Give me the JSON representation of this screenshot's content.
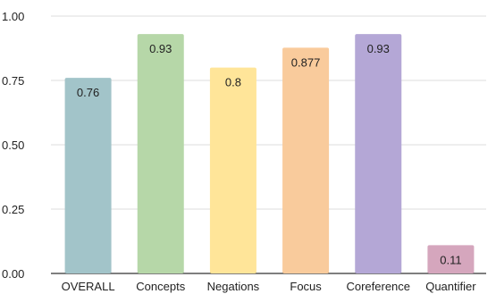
{
  "chart_data": {
    "type": "bar",
    "categories": [
      "OVERALL",
      "Concepts",
      "Negations",
      "Focus",
      "Coreference",
      "Quantifier"
    ],
    "values": [
      0.76,
      0.93,
      0.8,
      0.877,
      0.93,
      0.11
    ],
    "data_labels": [
      "0.76",
      "0.93",
      "0.8",
      "0.877",
      "0.93",
      "0.11"
    ],
    "colors": [
      "#a2c4c9",
      "#b6d7a8",
      "#ffe599",
      "#f9cb9c",
      "#b4a7d6",
      "#d5a6bd"
    ],
    "yticks": [
      0,
      0.25,
      0.5,
      0.75,
      1.0
    ],
    "ytick_labels": [
      "0.00",
      "0.25",
      "0.50",
      "0.75",
      "1.00"
    ],
    "ylim": [
      0,
      1.0
    ],
    "grid": true,
    "title": "",
    "xlabel": "",
    "ylabel": ""
  }
}
